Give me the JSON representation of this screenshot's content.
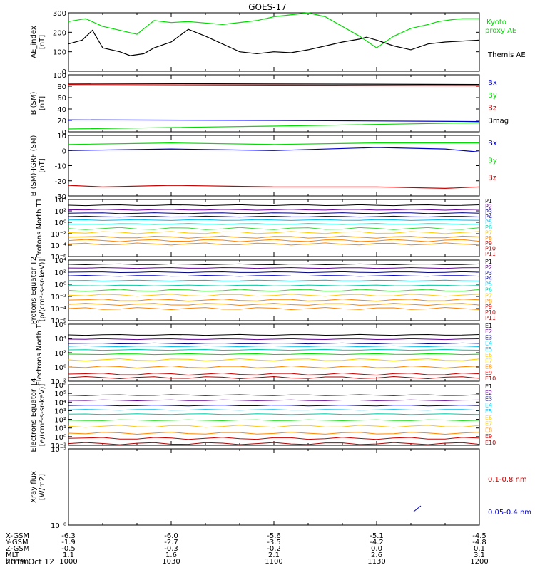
{
  "title": "GOES-17",
  "date": "2019 Oct 12",
  "time_ticks": [
    "1000",
    "1030",
    "1100",
    "1130",
    "1200"
  ],
  "orbit_rows": [
    {
      "label": "X-GSM",
      "values": [
        "-6.3",
        "-6.0",
        "-5.6",
        "-5.1",
        "-4.5"
      ]
    },
    {
      "label": "Y-GSM",
      "values": [
        "-1.9",
        "-2.7",
        "-3.5",
        "-4.2",
        "-4.8"
      ]
    },
    {
      "label": "Z-GSM",
      "values": [
        "-0.5",
        "-0.3",
        "-0.2",
        "0.0",
        "0.1"
      ]
    },
    {
      "label": "MLT",
      "values": [
        "1.1",
        "1.6",
        "2.1",
        "2.6",
        "3.1"
      ]
    },
    {
      "label": "hhmm",
      "values": [
        "1000",
        "1030",
        "1100",
        "1130",
        "1200"
      ]
    }
  ],
  "colors": {
    "black": "#000000",
    "green": "#00dd00",
    "blue": "#0000cc",
    "red": "#cc0000",
    "darkred": "#aa0000",
    "cyan": "#00bbee",
    "lightgreen": "#33dd33",
    "yellow": "#ffcc00",
    "orange": "#ff8800",
    "teal": "#00ccaa",
    "purple": "#660099",
    "navy": "#000088"
  },
  "chart_data": [
    {
      "type": "line",
      "ylabel": "AE_index [nT]",
      "ylim": [
        0,
        300
      ],
      "yticks": [
        "0",
        "100",
        "200",
        "300"
      ],
      "x_range": [
        "1000",
        "1200"
      ],
      "series": [
        {
          "name": "Kyoto proxy AE",
          "color": "green",
          "x": [
            0,
            5,
            10,
            15,
            20,
            25,
            30,
            35,
            45,
            55,
            60,
            70,
            75,
            85,
            90,
            95,
            100,
            105,
            108,
            112,
            115,
            120
          ],
          "values": [
            255,
            270,
            230,
            210,
            190,
            260,
            250,
            255,
            240,
            260,
            280,
            300,
            280,
            180,
            120,
            180,
            220,
            240,
            255,
            265,
            270,
            270
          ]
        },
        {
          "name": "Themis AE",
          "color": "black",
          "x": [
            0,
            4,
            7,
            10,
            15,
            18,
            22,
            25,
            30,
            35,
            40,
            45,
            50,
            55,
            60,
            65,
            70,
            75,
            80,
            85,
            87,
            90,
            95,
            100,
            105,
            110,
            120
          ],
          "values": [
            140,
            160,
            210,
            120,
            100,
            80,
            90,
            120,
            150,
            215,
            180,
            140,
            100,
            90,
            100,
            95,
            110,
            130,
            150,
            165,
            175,
            160,
            130,
            110,
            140,
            150,
            160
          ]
        }
      ]
    },
    {
      "type": "line",
      "ylabel": "B (SM) [nT]",
      "ylim": [
        0,
        100
      ],
      "yticks": [
        "0",
        "20",
        "40",
        "60",
        "80",
        "100"
      ],
      "series": [
        {
          "name": "Bx",
          "color": "blue",
          "x": [
            0,
            60,
            120
          ],
          "values": [
            21,
            20,
            18
          ]
        },
        {
          "name": "By",
          "color": "green",
          "x": [
            0,
            60,
            120
          ],
          "values": [
            5,
            10,
            16
          ]
        },
        {
          "name": "Bz",
          "color": "red",
          "x": [
            0,
            60,
            120
          ],
          "values": [
            83,
            82,
            81
          ]
        },
        {
          "name": "Bmag",
          "color": "black",
          "x": [
            0,
            60,
            120
          ],
          "values": [
            85,
            84,
            83
          ]
        }
      ]
    },
    {
      "type": "line",
      "ylabel": "B (SM)-IGRF (SM) [nT]",
      "ylim": [
        -30,
        10
      ],
      "yticks": [
        "-30",
        "-20",
        "-10",
        "0",
        "10"
      ],
      "series": [
        {
          "name": "Bx",
          "color": "blue",
          "x": [
            0,
            30,
            60,
            90,
            110,
            120
          ],
          "values": [
            0,
            1,
            0,
            2,
            1,
            -1
          ]
        },
        {
          "name": "By",
          "color": "green",
          "x": [
            0,
            30,
            60,
            90,
            120
          ],
          "values": [
            4,
            5,
            4,
            5,
            5
          ]
        },
        {
          "name": "Bz",
          "color": "red",
          "x": [
            0,
            10,
            30,
            60,
            90,
            110,
            120
          ],
          "values": [
            -23,
            -24,
            -23,
            -24,
            -24,
            -25,
            -24
          ]
        }
      ]
    },
    {
      "type": "line",
      "log": true,
      "ylabel": "Protons North T1",
      "ylim": [
        -6,
        4
      ],
      "yticks": [
        "10⁻⁶",
        "10⁻⁴",
        "10⁻²",
        "10⁰",
        "10²",
        "10⁴"
      ],
      "legend": [
        "P1",
        "P2",
        "P3",
        "P4",
        "P5",
        "P6",
        "P7",
        "P8",
        "P9",
        "P10",
        "P11"
      ],
      "legend_colors": [
        "black",
        "purple",
        "navy",
        "blue",
        "cyan",
        "teal",
        "yellow",
        "orange",
        "red",
        "red",
        "darkred"
      ],
      "levels": [
        3.0,
        2.2,
        1.6,
        1.0,
        0.4,
        -0.3,
        -1.1,
        -1.8,
        -2.6,
        -3.2,
        -3.8
      ],
      "level_colors": [
        "black",
        "purple",
        "navy",
        "blue",
        "cyan",
        "teal",
        "lightgreen",
        "yellow",
        "orange",
        "orange",
        "orange"
      ]
    },
    {
      "type": "line",
      "log": true,
      "ylabel": "Protons Equator T2 [p/(cm²-s-sr-keV)]",
      "ylim": [
        -6,
        4
      ],
      "yticks": [
        "10⁻⁶",
        "10⁻⁴",
        "10⁻²",
        "10⁰",
        "10²",
        "10⁴"
      ],
      "legend": [
        "P1",
        "P2",
        "P3",
        "P4",
        "P5",
        "P6",
        "P7",
        "P8",
        "P9",
        "P10",
        "P11"
      ],
      "legend_colors": [
        "black",
        "purple",
        "navy",
        "blue",
        "cyan",
        "teal",
        "yellow",
        "orange",
        "red",
        "red",
        "darkred"
      ],
      "levels": [
        3.3,
        2.7,
        2.0,
        1.4,
        0.6,
        -0.2,
        -1.0,
        -1.8,
        -2.6,
        -3.3,
        -4.0
      ],
      "level_colors": [
        "black",
        "purple",
        "navy",
        "blue",
        "cyan",
        "teal",
        "lightgreen",
        "yellow",
        "orange",
        "orange",
        "orange"
      ]
    },
    {
      "type": "line",
      "log": true,
      "ylabel": "Electrons North T3",
      "ylim": [
        -2,
        6
      ],
      "yticks": [
        "10⁻²",
        "10⁰",
        "10²",
        "10⁴",
        "10⁶"
      ],
      "legend": [
        "E1",
        "E2",
        "E3",
        "E4",
        "E5",
        "E6",
        "E7",
        "E8",
        "E9",
        "E10"
      ],
      "legend_colors": [
        "black",
        "purple",
        "navy",
        "cyan",
        "cyan",
        "yellow",
        "yellow",
        "orange",
        "red",
        "darkred"
      ],
      "levels": [
        4.5,
        3.9,
        3.3,
        2.9,
        2.4,
        1.8,
        1.0,
        0.0,
        -1.0,
        -1.5
      ],
      "level_colors": [
        "black",
        "purple",
        "navy",
        "cyan",
        "teal",
        "green",
        "yellow",
        "orange",
        "red",
        "darkred"
      ]
    },
    {
      "type": "line",
      "log": true,
      "ylabel": "Electrons Equator T4 [e/(cm²-s-sr-keV)]",
      "ylim": [
        -1,
        6
      ],
      "yticks": [
        "10⁻¹",
        "10⁰",
        "10¹",
        "10²",
        "10³",
        "10⁴",
        "10⁵",
        "10⁶"
      ],
      "legend": [
        "E1",
        "E2",
        "E3",
        "E4",
        "E5",
        "E6",
        "E7",
        "E8",
        "E9",
        "E10"
      ],
      "legend_colors": [
        "black",
        "purple",
        "navy",
        "cyan",
        "cyan",
        "yellow",
        "yellow",
        "orange",
        "red",
        "darkred"
      ],
      "levels": [
        4.8,
        4.2,
        3.6,
        3.1,
        2.6,
        1.9,
        1.2,
        0.4,
        -0.2,
        -0.8
      ],
      "level_colors": [
        "black",
        "purple",
        "navy",
        "cyan",
        "teal",
        "green",
        "yellow",
        "orange",
        "red",
        "darkred"
      ]
    },
    {
      "type": "line",
      "ylabel": "Xray flux [W/m2]",
      "yticks": [
        "10⁻⁸",
        "10⁻⁹"
      ],
      "legend": [
        "0.1-0.8 nm",
        "0.05-0.4 nm"
      ],
      "legend_colors": [
        "red",
        "blue"
      ]
    }
  ]
}
